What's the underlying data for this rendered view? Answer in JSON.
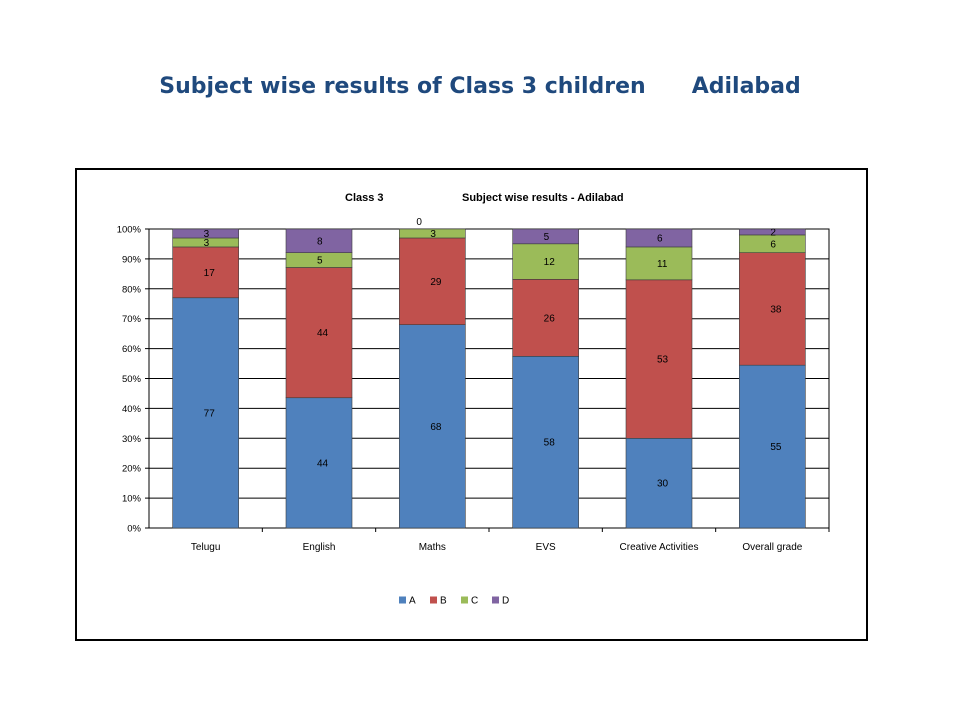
{
  "page": {
    "title_part1": "Subject wise results of Class 3 children",
    "title_part2": "Adilabad"
  },
  "chart_data": {
    "type": "bar",
    "stacked": true,
    "normalized_100": true,
    "title_left": "Class 3",
    "title_right": "Subject wise results - Adilabad",
    "categories": [
      "Telugu",
      "English",
      "Maths",
      "EVS",
      "Creative Activities",
      "Overall grade"
    ],
    "series": [
      {
        "name": "A",
        "color": "#4f81bd",
        "values": [
          77,
          44,
          68,
          58,
          30,
          55
        ]
      },
      {
        "name": "B",
        "color": "#c0504d",
        "values": [
          17,
          44,
          29,
          26,
          53,
          38
        ]
      },
      {
        "name": "C",
        "color": "#9bbb59",
        "values": [
          3,
          5,
          3,
          12,
          11,
          6
        ]
      },
      {
        "name": "D",
        "color": "#8064a2",
        "values": [
          3,
          8,
          0,
          5,
          6,
          2
        ]
      }
    ],
    "yticks": [
      "0%",
      "10%",
      "20%",
      "30%",
      "40%",
      "50%",
      "60%",
      "70%",
      "80%",
      "90%",
      "100%"
    ],
    "ylim": [
      0,
      100
    ],
    "grid": true,
    "legend_position": "bottom"
  }
}
